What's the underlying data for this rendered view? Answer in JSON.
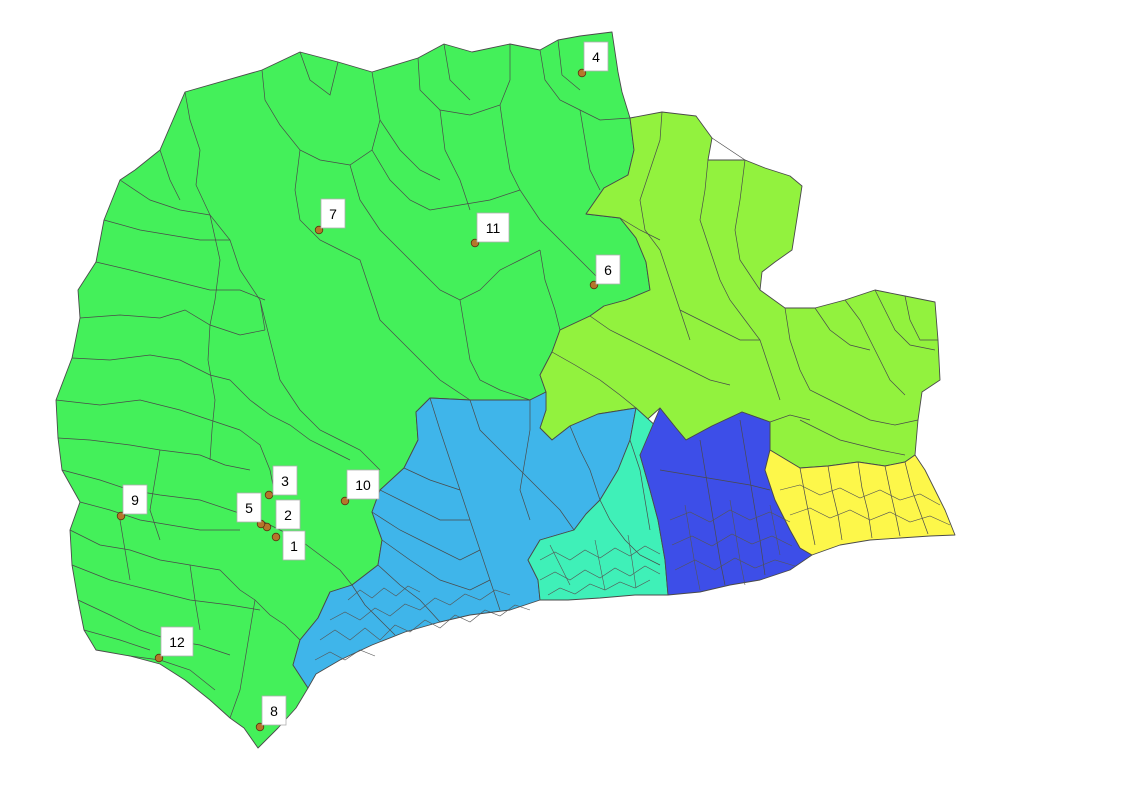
{
  "map": {
    "colors": {
      "zone_green": "#44f05a",
      "zone_lime": "#92f23e",
      "zone_sky": "#3fb5ea",
      "zone_aqua": "#3ff0b8",
      "zone_blue": "#3d4ee8",
      "zone_yellow": "#fdf74a",
      "site_marker": "#b5762a",
      "boundary": "#4a4a4a"
    },
    "sites": [
      {
        "label": "1"
      },
      {
        "label": "2"
      },
      {
        "label": "3"
      },
      {
        "label": "4"
      },
      {
        "label": "5"
      },
      {
        "label": "6"
      },
      {
        "label": "7"
      },
      {
        "label": "8"
      },
      {
        "label": "9"
      },
      {
        "label": "10"
      },
      {
        "label": "11"
      },
      {
        "label": "12"
      }
    ]
  }
}
